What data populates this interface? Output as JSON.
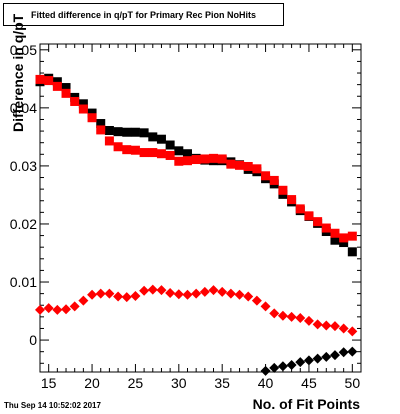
{
  "title": "Fitted difference in q/pT for Primary Rec Pion NoHits",
  "footer": "Thu Sep 14 10:52:02 2017",
  "chart_data": {
    "type": "scatter",
    "xlabel": "No. of Fit Points",
    "ylabel": "Difference in q/pT",
    "xlim": [
      14,
      51
    ],
    "ylim": [
      -0.0055,
      0.051
    ],
    "x_ticks": [
      15,
      20,
      25,
      30,
      35,
      40,
      45,
      50
    ],
    "y_ticks": [
      0,
      0.01,
      0.02,
      0.03,
      0.04,
      0.05
    ],
    "y_tick_labels": [
      "0",
      "0.01",
      "0.02",
      "0.03",
      "0.04",
      "0.05"
    ],
    "grid": false,
    "legend": "none",
    "series": [
      {
        "color": "#000000",
        "marker": "square",
        "x": [
          14,
          15,
          16,
          17,
          18,
          19,
          20,
          21,
          22,
          23,
          24,
          25,
          26,
          27,
          28,
          29,
          30,
          31,
          32,
          33,
          34,
          35,
          36,
          37,
          38,
          39,
          40,
          41,
          42,
          43,
          44,
          45,
          46,
          47,
          48,
          49,
          50
        ],
        "y": [
          0.0445,
          0.0451,
          0.0445,
          0.0435,
          0.0418,
          0.0407,
          0.0391,
          0.0373,
          0.0361,
          0.0359,
          0.0358,
          0.0358,
          0.0357,
          0.035,
          0.0346,
          0.0336,
          0.0326,
          0.0321,
          0.0313,
          0.031,
          0.0309,
          0.0309,
          0.0307,
          0.0302,
          0.0294,
          0.029,
          0.0278,
          0.0269,
          0.0251,
          0.0238,
          0.0223,
          0.0213,
          0.0201,
          0.0187,
          0.0172,
          0.0168,
          0.0152
        ]
      },
      {
        "color": "#ff0000",
        "marker": "square",
        "x": [
          14,
          15,
          16,
          17,
          18,
          19,
          20,
          21,
          22,
          23,
          24,
          25,
          26,
          27,
          28,
          29,
          30,
          31,
          32,
          33,
          34,
          35,
          36,
          37,
          38,
          39,
          40,
          41,
          42,
          43,
          44,
          45,
          46,
          47,
          48,
          49,
          50
        ],
        "y": [
          0.0449,
          0.0447,
          0.0437,
          0.0425,
          0.0411,
          0.0398,
          0.0383,
          0.0362,
          0.0343,
          0.0333,
          0.0328,
          0.0327,
          0.0323,
          0.0323,
          0.0321,
          0.0318,
          0.0308,
          0.0309,
          0.0311,
          0.0312,
          0.0313,
          0.0312,
          0.0303,
          0.0301,
          0.0299,
          0.0295,
          0.0283,
          0.0275,
          0.0258,
          0.0242,
          0.0226,
          0.0214,
          0.0204,
          0.0193,
          0.0184,
          0.0176,
          0.0179
        ]
      },
      {
        "color": "#ff0000",
        "marker": "diamond",
        "x": [
          14,
          15,
          16,
          17,
          18,
          19,
          20,
          21,
          22,
          23,
          24,
          25,
          26,
          27,
          28,
          29,
          30,
          31,
          32,
          33,
          34,
          35,
          36,
          37,
          38,
          39,
          40,
          41,
          42,
          43,
          44,
          45,
          46,
          47,
          48,
          49,
          50
        ],
        "y": [
          0.0052,
          0.0055,
          0.0052,
          0.0053,
          0.0058,
          0.0068,
          0.0078,
          0.008,
          0.008,
          0.0075,
          0.0074,
          0.0076,
          0.0085,
          0.0087,
          0.0086,
          0.0081,
          0.0079,
          0.0078,
          0.008,
          0.0083,
          0.0086,
          0.0083,
          0.008,
          0.0078,
          0.0075,
          0.0068,
          0.0058,
          0.0046,
          0.0042,
          0.004,
          0.0038,
          0.0033,
          0.0027,
          0.0025,
          0.0024,
          0.002,
          0.0015
        ]
      },
      {
        "color": "#000000",
        "marker": "diamond",
        "x": [
          40,
          41,
          42,
          43,
          44,
          45,
          46,
          47,
          48,
          49,
          50
        ],
        "y": [
          -0.0053,
          -0.0048,
          -0.0045,
          -0.0043,
          -0.0038,
          -0.0035,
          -0.0032,
          -0.0029,
          -0.0026,
          -0.0021,
          -0.002
        ]
      }
    ]
  }
}
